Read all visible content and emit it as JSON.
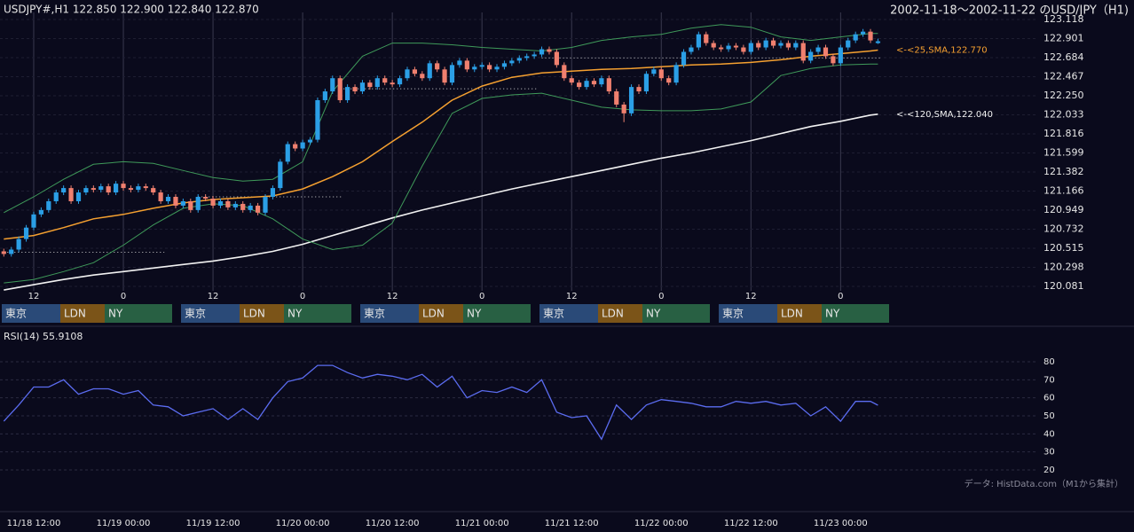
{
  "chart_data": [
    {
      "type": "candlestick",
      "header": "USDJPY#,H1 122.850 122.900 122.840 122.870",
      "title": "2002-11-18〜2002-11-22 のUSD/JPY（H1)",
      "up_color": "#2b9fe6",
      "down_color": "#f0806f",
      "open": [
        120.48,
        120.45,
        120.5,
        120.62,
        120.75,
        120.9,
        120.95,
        121.05,
        121.15,
        121.2,
        121.05,
        121.15,
        121.2,
        121.18,
        121.22,
        121.15,
        121.25,
        121.2,
        121.18,
        121.22,
        121.2,
        121.15,
        121.05,
        121.1,
        121.0,
        121.05,
        120.95,
        121.1,
        121.08,
        121.0,
        121.05,
        120.98,
        121.02,
        120.95,
        121.0,
        120.92,
        121.1,
        121.2,
        121.5,
        121.7,
        121.65,
        121.72,
        121.75,
        122.2,
        122.3,
        122.45,
        122.2,
        122.35,
        122.3,
        122.4,
        122.35,
        122.45,
        122.4,
        122.38,
        122.45,
        122.55,
        122.5,
        122.45,
        122.62,
        122.55,
        122.4,
        122.6,
        122.65,
        122.55,
        122.58,
        122.6,
        122.55,
        122.58,
        122.62,
        122.65,
        122.68,
        122.7,
        122.72,
        122.78,
        122.75,
        122.6,
        122.45,
        122.4,
        122.35,
        122.42,
        122.38,
        122.45,
        122.3,
        122.15,
        122.05,
        122.35,
        122.3,
        122.5,
        122.55,
        122.45,
        122.4,
        122.6,
        122.75,
        122.8,
        122.95,
        122.85,
        122.8,
        122.78,
        122.82,
        122.8,
        122.75,
        122.85,
        122.8,
        122.88,
        122.82,
        122.85,
        122.8,
        122.85,
        122.65,
        122.75,
        122.8,
        122.7,
        122.62,
        122.8,
        122.88,
        122.95,
        122.98,
        122.85
      ],
      "high": [
        120.51,
        120.53,
        120.65,
        120.78,
        120.93,
        120.98,
        121.08,
        121.18,
        121.23,
        121.23,
        121.18,
        121.23,
        121.23,
        121.25,
        121.25,
        121.28,
        121.28,
        121.23,
        121.25,
        121.25,
        121.23,
        121.18,
        121.13,
        121.13,
        121.08,
        121.08,
        121.13,
        121.13,
        121.11,
        121.08,
        121.08,
        121.05,
        121.05,
        121.03,
        121.03,
        121.13,
        121.23,
        121.53,
        121.73,
        121.73,
        121.75,
        121.78,
        122.23,
        122.33,
        122.48,
        122.48,
        122.38,
        122.38,
        122.43,
        122.43,
        122.48,
        122.48,
        122.43,
        122.48,
        122.58,
        122.58,
        122.53,
        122.65,
        122.65,
        122.58,
        122.63,
        122.68,
        122.68,
        122.61,
        122.63,
        122.63,
        122.61,
        122.65,
        122.68,
        122.71,
        122.73,
        122.75,
        122.81,
        122.81,
        122.78,
        122.63,
        122.48,
        122.43,
        122.45,
        122.45,
        122.48,
        122.48,
        122.33,
        122.18,
        122.38,
        122.38,
        122.53,
        122.58,
        122.58,
        122.48,
        122.63,
        122.78,
        122.83,
        122.98,
        122.98,
        122.88,
        122.83,
        122.85,
        122.85,
        122.83,
        122.88,
        122.88,
        122.91,
        122.91,
        122.88,
        122.88,
        122.88,
        122.88,
        122.78,
        122.83,
        122.83,
        122.73,
        122.83,
        122.91,
        122.98,
        123.01,
        123.01,
        122.9
      ],
      "low": [
        120.42,
        120.42,
        120.47,
        120.59,
        120.72,
        120.87,
        120.92,
        121.02,
        121.12,
        121.02,
        121.02,
        121.12,
        121.15,
        121.15,
        121.12,
        121.12,
        121.17,
        121.15,
        121.15,
        121.17,
        121.12,
        121.02,
        121.02,
        120.97,
        120.97,
        120.92,
        120.92,
        121.05,
        120.97,
        120.97,
        120.95,
        120.95,
        120.92,
        120.92,
        120.89,
        120.89,
        121.07,
        121.17,
        121.47,
        121.62,
        121.62,
        121.69,
        121.72,
        122.17,
        122.27,
        122.17,
        122.17,
        122.27,
        122.27,
        122.32,
        122.32,
        122.37,
        122.35,
        122.35,
        122.42,
        122.47,
        122.42,
        122.42,
        122.52,
        122.37,
        122.37,
        122.57,
        122.52,
        122.52,
        122.55,
        122.52,
        122.52,
        122.55,
        122.59,
        122.62,
        122.65,
        122.67,
        122.69,
        122.72,
        122.57,
        122.42,
        122.37,
        122.32,
        122.32,
        122.35,
        122.35,
        122.27,
        122.12,
        121.95,
        122.02,
        122.27,
        122.27,
        122.47,
        122.42,
        122.37,
        122.37,
        122.57,
        122.72,
        122.77,
        122.82,
        122.77,
        122.75,
        122.75,
        122.77,
        122.72,
        122.72,
        122.77,
        122.77,
        122.79,
        122.79,
        122.77,
        122.77,
        122.62,
        122.62,
        122.72,
        122.67,
        122.59,
        122.59,
        122.77,
        122.85,
        122.92,
        122.85,
        122.84
      ],
      "close": [
        120.45,
        120.5,
        120.62,
        120.75,
        120.9,
        120.95,
        121.05,
        121.15,
        121.2,
        121.05,
        121.15,
        121.2,
        121.18,
        121.22,
        121.15,
        121.25,
        121.2,
        121.18,
        121.22,
        121.2,
        121.15,
        121.05,
        121.1,
        121.0,
        121.05,
        120.95,
        121.1,
        121.08,
        121.0,
        121.05,
        120.98,
        121.02,
        120.95,
        121.0,
        120.92,
        121.1,
        121.2,
        121.5,
        121.7,
        121.65,
        121.72,
        121.75,
        122.2,
        122.3,
        122.45,
        122.2,
        122.35,
        122.3,
        122.4,
        122.35,
        122.45,
        122.4,
        122.38,
        122.45,
        122.55,
        122.5,
        122.45,
        122.62,
        122.55,
        122.4,
        122.6,
        122.65,
        122.55,
        122.58,
        122.6,
        122.55,
        122.58,
        122.62,
        122.65,
        122.68,
        122.7,
        122.72,
        122.78,
        122.75,
        122.6,
        122.45,
        122.4,
        122.35,
        122.42,
        122.38,
        122.45,
        122.3,
        122.15,
        122.05,
        122.35,
        122.3,
        122.5,
        122.55,
        122.45,
        122.4,
        122.6,
        122.75,
        122.8,
        122.95,
        122.85,
        122.8,
        122.78,
        122.82,
        122.8,
        122.75,
        122.85,
        122.8,
        122.88,
        122.82,
        122.85,
        122.8,
        122.85,
        122.65,
        122.75,
        122.8,
        122.7,
        122.62,
        122.8,
        122.88,
        122.95,
        122.98,
        122.88,
        122.87
      ],
      "series": [
        {
          "color": "#f5a030",
          "x": [
            0,
            4,
            8,
            12,
            16,
            20,
            24,
            28,
            32,
            36,
            40,
            44,
            48,
            52,
            56,
            60,
            64,
            68,
            72,
            76,
            80,
            84,
            88,
            92,
            96,
            100,
            104,
            108,
            112,
            116,
            117
          ],
          "values": [
            120.62,
            120.66,
            120.75,
            120.85,
            120.9,
            120.97,
            121.03,
            121.07,
            121.09,
            121.11,
            121.19,
            121.33,
            121.5,
            121.73,
            121.95,
            122.2,
            122.36,
            122.46,
            122.51,
            122.53,
            122.55,
            122.56,
            122.58,
            122.6,
            122.61,
            122.63,
            122.66,
            122.7,
            122.73,
            122.76,
            122.77
          ]
        },
        {
          "color": "#f2f2f2",
          "x": [
            0,
            4,
            8,
            12,
            16,
            20,
            24,
            28,
            32,
            36,
            40,
            44,
            48,
            52,
            56,
            60,
            64,
            68,
            72,
            76,
            80,
            84,
            88,
            92,
            96,
            100,
            104,
            108,
            112,
            116,
            117
          ],
          "values": [
            120.04,
            120.1,
            120.16,
            120.21,
            120.25,
            120.29,
            120.33,
            120.37,
            120.42,
            120.48,
            120.56,
            120.66,
            120.76,
            120.86,
            120.95,
            121.03,
            121.11,
            121.19,
            121.26,
            121.33,
            121.4,
            121.47,
            121.54,
            121.6,
            121.67,
            121.74,
            121.82,
            121.9,
            121.96,
            122.03,
            122.04
          ]
        },
        {
          "color": "#3f9a5a",
          "x": [
            0,
            4,
            8,
            12,
            16,
            20,
            24,
            28,
            32,
            36,
            40,
            44,
            48,
            52,
            56,
            60,
            64,
            68,
            72,
            76,
            80,
            84,
            88,
            92,
            96,
            100,
            104,
            108,
            112,
            116,
            117
          ],
          "values": [
            120.92,
            121.1,
            121.3,
            121.47,
            121.5,
            121.48,
            121.4,
            121.32,
            121.28,
            121.3,
            121.5,
            122.3,
            122.7,
            122.85,
            122.85,
            122.83,
            122.8,
            122.78,
            122.76,
            122.8,
            122.88,
            122.92,
            122.95,
            123.02,
            123.06,
            123.03,
            122.92,
            122.88,
            122.92,
            122.96,
            122.96
          ]
        },
        {
          "color": "#3f9a5a",
          "x": [
            0,
            4,
            8,
            12,
            16,
            20,
            24,
            28,
            32,
            36,
            40,
            44,
            48,
            52,
            56,
            60,
            64,
            68,
            72,
            76,
            80,
            84,
            88,
            92,
            96,
            100,
            104,
            108,
            112,
            116,
            117
          ],
          "values": [
            120.12,
            120.16,
            120.25,
            120.35,
            120.55,
            120.78,
            120.97,
            121.02,
            121.0,
            120.85,
            120.62,
            120.5,
            120.55,
            120.8,
            121.45,
            122.05,
            122.22,
            122.26,
            122.28,
            122.2,
            122.12,
            122.09,
            122.08,
            122.08,
            122.1,
            122.18,
            122.48,
            122.56,
            122.6,
            122.61,
            122.61
          ]
        }
      ],
      "levels": [
        {
          "value": 120.47,
          "from": 0,
          "to": 21
        },
        {
          "value": 121.1,
          "from": 26,
          "to": 45
        },
        {
          "value": 122.33,
          "from": 45,
          "to": 71
        },
        {
          "value": 122.68,
          "from": 72,
          "to": 117
        }
      ],
      "annotations": [
        {
          "text": "<-<25,SMA,122.770",
          "value": 122.77,
          "color": "#f5a030"
        },
        {
          "text": "<-<120,SMA,122.040",
          "value": 122.04,
          "color": "#f2f2f2"
        }
      ],
      "ylim": [
        120.081,
        123.118
      ],
      "yticks": [
        {
          "value": 120.081,
          "label": "120.081"
        },
        120.298,
        120.515,
        120.732,
        120.949,
        121.166,
        121.382,
        121.599,
        121.816,
        122.033,
        {
          "value": 122.25,
          "label": "122.250"
        },
        122.467,
        122.684,
        122.901,
        123.118
      ],
      "xticks": [
        {
          "value": 4,
          "label": "12"
        },
        {
          "value": 16,
          "label": "0"
        },
        {
          "value": 28,
          "label": "12"
        },
        {
          "value": 40,
          "label": "0"
        },
        {
          "value": 52,
          "label": "12"
        },
        {
          "value": 64,
          "label": "0"
        },
        {
          "value": 76,
          "label": "12"
        },
        {
          "value": 88,
          "label": "0"
        },
        {
          "value": 100,
          "label": "12"
        },
        {
          "value": 112,
          "label": "0"
        }
      ],
      "sessions": [
        [
          "東京",
          "LDN",
          "NY"
        ],
        [
          "東京",
          "LDN",
          "NY"
        ],
        [
          "東京",
          "LDN",
          "NY"
        ],
        [
          "東京",
          "LDN",
          "NY"
        ],
        [
          "東京",
          "LDN",
          "NY"
        ]
      ],
      "session_colors": [
        "#2a4a78",
        "#7b5418",
        "#286043"
      ]
    },
    {
      "type": "line",
      "title": "RSI(14) 55.9108",
      "source": "データ: HistData.com（M1から集計）",
      "series": [
        {
          "color": "#5b6cf0",
          "x": [
            0,
            2,
            4,
            6,
            8,
            10,
            12,
            14,
            16,
            18,
            20,
            22,
            24,
            26,
            28,
            30,
            32,
            34,
            36,
            38,
            40,
            42,
            44,
            46,
            48,
            50,
            52,
            54,
            56,
            58,
            60,
            62,
            64,
            66,
            68,
            70,
            72,
            74,
            76,
            78,
            80,
            82,
            84,
            86,
            88,
            90,
            92,
            94,
            96,
            98,
            100,
            102,
            104,
            106,
            108,
            110,
            112,
            114,
            116,
            117
          ],
          "values": [
            47,
            56,
            66,
            66,
            70,
            62,
            65,
            65,
            62,
            64,
            56,
            55,
            50,
            52,
            54,
            48,
            54,
            48,
            60,
            69,
            71,
            78,
            78,
            74,
            71,
            73,
            72,
            70,
            73,
            66,
            72,
            60,
            64,
            63,
            66,
            63,
            70,
            52,
            49,
            50,
            37,
            56,
            48,
            56,
            59,
            58,
            57,
            55,
            55,
            58,
            57,
            58,
            56,
            57,
            50,
            55,
            47,
            58,
            58,
            55.9108
          ]
        }
      ],
      "ylim": [
        20,
        80
      ],
      "yticks": [
        20,
        30,
        40,
        50,
        60,
        70,
        80
      ],
      "xticks": [
        {
          "value": 4,
          "label": "11/18 12:00"
        },
        {
          "value": 16,
          "label": "11/19 00:00"
        },
        {
          "value": 28,
          "label": "11/19 12:00"
        },
        {
          "value": 40,
          "label": "11/20 00:00"
        },
        {
          "value": 52,
          "label": "11/20 12:00"
        },
        {
          "value": 64,
          "label": "11/21 00:00"
        },
        {
          "value": 76,
          "label": "11/21 12:00"
        },
        {
          "value": 88,
          "label": "11/22 00:00"
        },
        {
          "value": 100,
          "label": "11/22 12:00"
        },
        {
          "value": 112,
          "label": "11/23 00:00"
        }
      ]
    }
  ]
}
